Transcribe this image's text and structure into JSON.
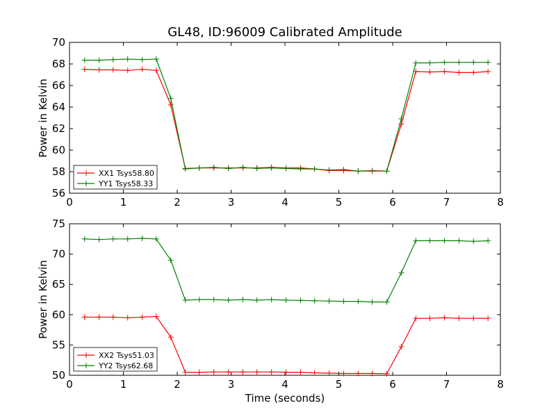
{
  "chart_data": [
    {
      "type": "line",
      "title": "GL48, ID:96009 Calibrated Amplitude",
      "xlabel": "",
      "ylabel": "Power in Kelvin",
      "xlim": [
        0,
        8
      ],
      "ylim": [
        56,
        70
      ],
      "xticks": [
        "0",
        "1",
        "2",
        "3",
        "4",
        "5",
        "6",
        "7",
        "8"
      ],
      "yticks": [
        "56",
        "58",
        "60",
        "62",
        "64",
        "66",
        "68",
        "70"
      ],
      "legend_position": "lower-left",
      "grid": false,
      "x": [
        0.28,
        0.55,
        0.81,
        1.08,
        1.35,
        1.61,
        1.88,
        2.15,
        2.41,
        2.68,
        2.95,
        3.22,
        3.48,
        3.75,
        4.02,
        4.29,
        4.55,
        4.82,
        5.09,
        5.36,
        5.62,
        5.89,
        6.16,
        6.43,
        6.69,
        6.96,
        7.23,
        7.5,
        7.77
      ],
      "series": [
        {
          "name": "XX1 Tsys58.80",
          "color": "#ff0000",
          "values": [
            67.5,
            67.45,
            67.45,
            67.4,
            67.5,
            67.4,
            64.2,
            58.3,
            58.35,
            58.35,
            58.35,
            58.35,
            58.35,
            58.4,
            58.35,
            58.35,
            58.25,
            58.1,
            58.1,
            58.05,
            58.1,
            58.05,
            62.4,
            67.3,
            67.25,
            67.3,
            67.2,
            67.2,
            67.3
          ]
        },
        {
          "name": "YY1 Tsys58.33",
          "color": "#008000",
          "values": [
            68.35,
            68.35,
            68.4,
            68.45,
            68.4,
            68.45,
            64.8,
            58.25,
            58.35,
            58.4,
            58.3,
            58.4,
            58.3,
            58.35,
            58.3,
            58.25,
            58.25,
            58.15,
            58.2,
            58.05,
            58.05,
            58.05,
            62.9,
            68.1,
            68.1,
            68.15,
            68.15,
            68.15,
            68.15
          ]
        }
      ]
    },
    {
      "type": "line",
      "title": "",
      "xlabel": "Time (seconds)",
      "ylabel": "Power in Kelvin",
      "xlim": [
        0,
        8
      ],
      "ylim": [
        50,
        75
      ],
      "xticks": [
        "0",
        "1",
        "2",
        "3",
        "4",
        "5",
        "6",
        "7",
        "8"
      ],
      "yticks": [
        "50",
        "55",
        "60",
        "65",
        "70",
        "75"
      ],
      "legend_position": "lower-left",
      "grid": false,
      "x": [
        0.28,
        0.55,
        0.81,
        1.08,
        1.35,
        1.61,
        1.88,
        2.15,
        2.41,
        2.68,
        2.95,
        3.22,
        3.48,
        3.75,
        4.02,
        4.29,
        4.55,
        4.82,
        5.09,
        5.36,
        5.62,
        5.89,
        6.16,
        6.43,
        6.69,
        6.96,
        7.23,
        7.5,
        7.77
      ],
      "series": [
        {
          "name": "XX2 Tsys51.03",
          "color": "#ff0000",
          "values": [
            59.6,
            59.6,
            59.6,
            59.5,
            59.6,
            59.7,
            56.3,
            50.5,
            50.5,
            50.55,
            50.55,
            50.55,
            50.55,
            50.55,
            50.5,
            50.5,
            50.4,
            50.35,
            50.3,
            50.3,
            50.3,
            50.25,
            54.7,
            59.4,
            59.4,
            59.5,
            59.4,
            59.4,
            59.4
          ]
        },
        {
          "name": "YY2 Tsys62.68",
          "color": "#008000",
          "values": [
            72.5,
            72.4,
            72.5,
            72.5,
            72.6,
            72.5,
            69.0,
            62.4,
            62.5,
            62.5,
            62.4,
            62.5,
            62.4,
            62.5,
            62.4,
            62.35,
            62.3,
            62.25,
            62.2,
            62.2,
            62.1,
            62.1,
            66.9,
            72.2,
            72.2,
            72.2,
            72.2,
            72.1,
            72.2
          ]
        }
      ]
    }
  ]
}
